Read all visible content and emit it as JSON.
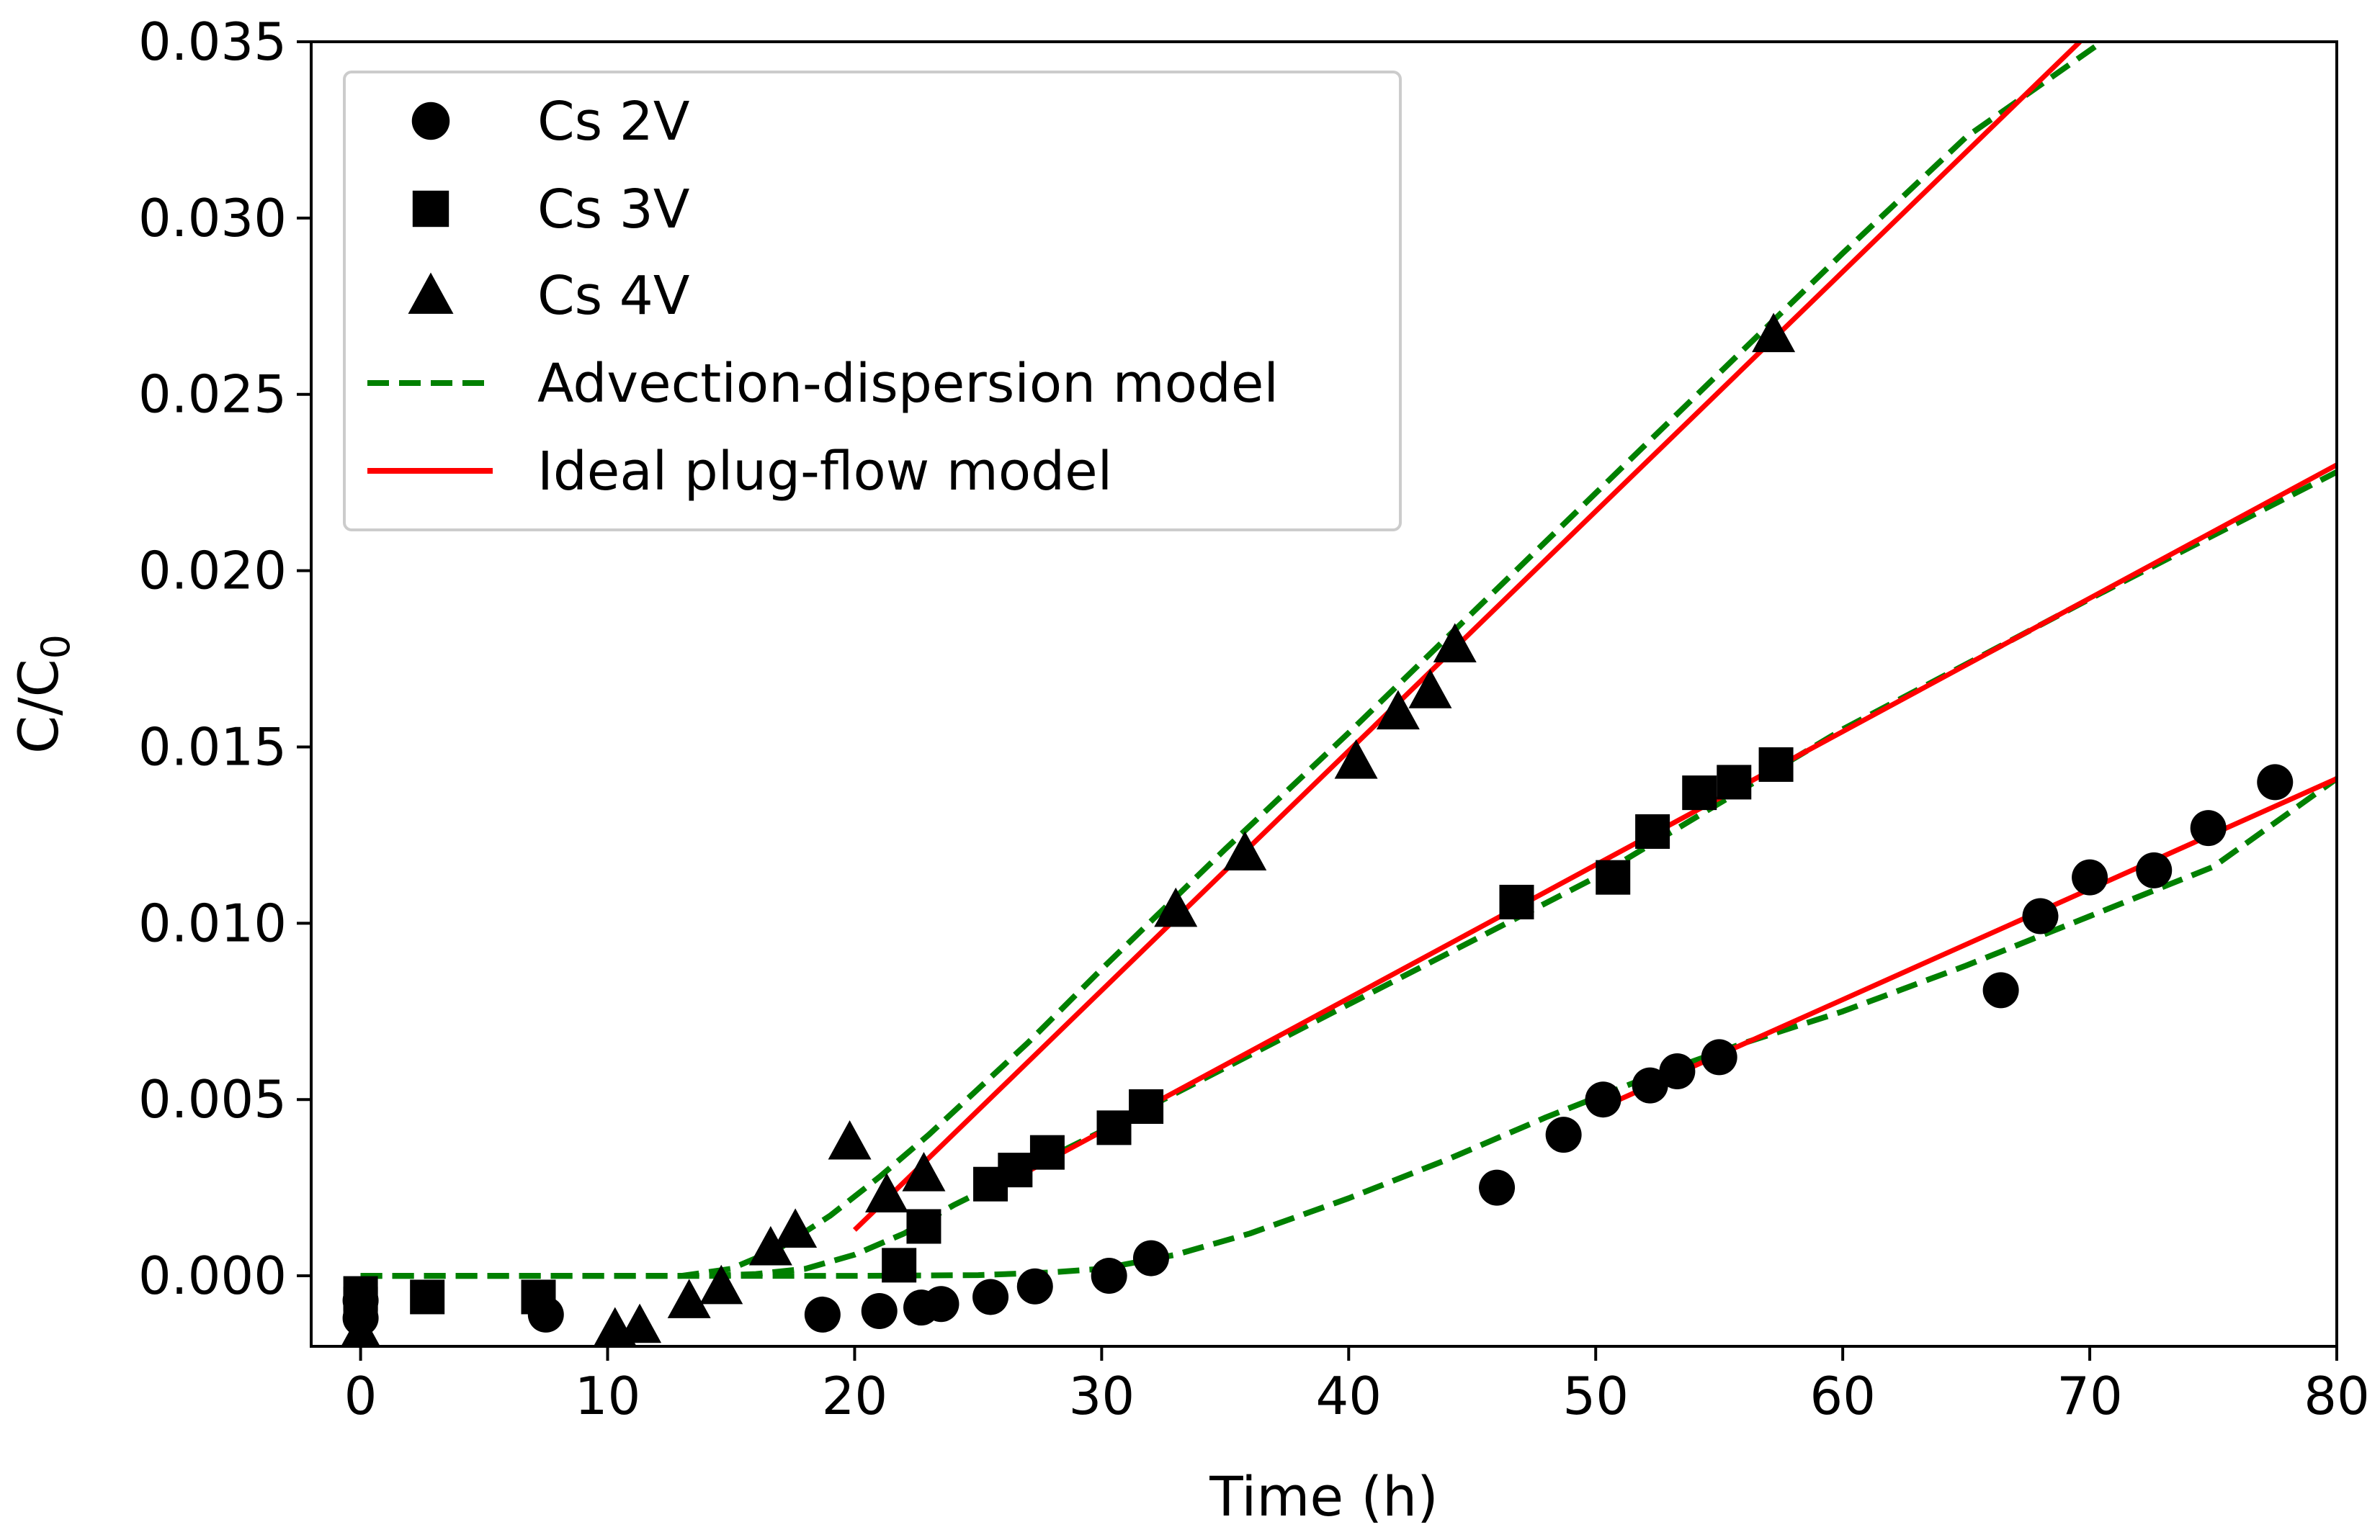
{
  "chart_data": {
    "type": "scatter",
    "title": "",
    "xlabel": "Time (h)",
    "ylabel": "C/C",
    "ylabel_subscript": "0",
    "xlim": [
      -2,
      80
    ],
    "ylim": [
      -0.002,
      0.035
    ],
    "x_ticks": [
      0,
      10,
      20,
      30,
      40,
      50,
      60,
      70,
      80
    ],
    "x_tick_labels": [
      "0",
      "10",
      "20",
      "30",
      "40",
      "50",
      "60",
      "70",
      "80"
    ],
    "y_ticks": [
      0.0,
      0.005,
      0.01,
      0.015,
      0.02,
      0.025,
      0.03,
      0.035
    ],
    "y_tick_labels": [
      "0.000",
      "0.005",
      "0.010",
      "0.015",
      "0.020",
      "0.025",
      "0.030",
      "0.035"
    ],
    "grid": false,
    "legend_position": "top-left",
    "legend": [
      {
        "label": "Cs 2V",
        "marker": "circle"
      },
      {
        "label": "Cs 3V",
        "marker": "square"
      },
      {
        "label": "Cs 4V",
        "marker": "triangle"
      },
      {
        "label": "Advection-dispersion model",
        "line": "dashed",
        "color": "#008000"
      },
      {
        "label": "Ideal plug-flow model",
        "line": "solid",
        "color": "#ff0000"
      }
    ],
    "series": [
      {
        "name": "Cs 2V",
        "marker": "circle",
        "color": "#000000",
        "points": [
          [
            0,
            -0.0007
          ],
          [
            0,
            -0.0012
          ],
          [
            7.5,
            -0.0011
          ],
          [
            18.7,
            -0.0011
          ],
          [
            21,
            -0.001
          ],
          [
            22.7,
            -0.0009
          ],
          [
            23.5,
            -0.0008
          ],
          [
            25.5,
            -0.0006
          ],
          [
            27.3,
            -0.0003
          ],
          [
            30.3,
            0.0
          ],
          [
            32,
            0.0005
          ],
          [
            46,
            0.0025
          ],
          [
            48.7,
            0.004
          ],
          [
            50.3,
            0.005
          ],
          [
            52.2,
            0.0054
          ],
          [
            53.3,
            0.0058
          ],
          [
            55,
            0.0062
          ],
          [
            66.4,
            0.0081
          ],
          [
            68,
            0.0102
          ],
          [
            70,
            0.0113
          ],
          [
            72.6,
            0.0115
          ],
          [
            74.8,
            0.0127
          ],
          [
            77.5,
            0.014
          ]
        ]
      },
      {
        "name": "Cs 3V",
        "marker": "square",
        "color": "#000000",
        "points": [
          [
            0,
            -0.0005
          ],
          [
            0,
            -0.0008
          ],
          [
            2.7,
            -0.0006
          ],
          [
            7.2,
            -0.0006
          ],
          [
            21.8,
            0.0003
          ],
          [
            22.8,
            0.0014
          ],
          [
            25.5,
            0.0026
          ],
          [
            26.5,
            0.003
          ],
          [
            27.8,
            0.0035
          ],
          [
            30.5,
            0.0042
          ],
          [
            31.8,
            0.0048
          ],
          [
            46.8,
            0.0106
          ],
          [
            50.7,
            0.0113
          ],
          [
            52.3,
            0.0126
          ],
          [
            54.2,
            0.0137
          ],
          [
            55.6,
            0.014
          ],
          [
            57.3,
            0.0145
          ]
        ]
      },
      {
        "name": "Cs 4V",
        "marker": "triangle",
        "color": "#000000",
        "points": [
          [
            0,
            -0.0016
          ],
          [
            10.3,
            -0.0015
          ],
          [
            11.3,
            -0.0014
          ],
          [
            13.3,
            -0.0007
          ],
          [
            14.6,
            -0.0003
          ],
          [
            16.6,
            0.0008
          ],
          [
            17.6,
            0.0013
          ],
          [
            19.8,
            0.0038
          ],
          [
            21.3,
            0.0023
          ],
          [
            22.8,
            0.0029
          ],
          [
            33,
            0.0104
          ],
          [
            35.8,
            0.012
          ],
          [
            40.3,
            0.0146
          ],
          [
            42,
            0.016
          ],
          [
            43.3,
            0.0166
          ],
          [
            44.3,
            0.0179
          ],
          [
            57.2,
            0.0267
          ]
        ]
      }
    ],
    "model_lines": [
      {
        "name": "Advection-dispersion model",
        "series": "Cs 2V",
        "style": "dashed",
        "color": "#008000",
        "x": [
          0,
          20,
          25,
          28,
          30,
          33,
          36,
          40,
          44,
          48,
          52,
          56,
          60,
          65,
          70,
          75,
          80
        ],
        "y": [
          0,
          0,
          2e-05,
          0.0001,
          0.0002,
          0.0006,
          0.0012,
          0.0022,
          0.0033,
          0.0045,
          0.0056,
          0.0066,
          0.0075,
          0.0088,
          0.0102,
          0.0116,
          0.0141
        ]
      },
      {
        "name": "Advection-dispersion model",
        "series": "Cs 3V",
        "style": "dashed",
        "color": "#008000",
        "x": [
          0,
          14,
          16,
          18,
          20,
          22,
          24,
          26,
          28,
          30,
          40,
          50,
          60,
          70,
          80
        ],
        "y": [
          0,
          0,
          5e-05,
          0.0002,
          0.0006,
          0.0012,
          0.002,
          0.0027,
          0.0034,
          0.0041,
          0.0077,
          0.0113,
          0.0155,
          0.0192,
          0.0228
        ]
      },
      {
        "name": "Advection-dispersion model",
        "series": "Cs 4V",
        "style": "dashed",
        "color": "#008000",
        "x": [
          0,
          13,
          15,
          17,
          19,
          21,
          23,
          25,
          27,
          30,
          35,
          40,
          45,
          50,
          55,
          60,
          65,
          70.5
        ],
        "y": [
          0,
          0,
          0.0002,
          0.0008,
          0.0017,
          0.0028,
          0.004,
          0.0053,
          0.0066,
          0.0087,
          0.0121,
          0.0154,
          0.0188,
          0.0222,
          0.0256,
          0.029,
          0.0323,
          0.035
        ]
      },
      {
        "name": "Ideal plug-flow model",
        "series": "Cs 2V",
        "style": "solid",
        "color": "#ff0000",
        "x": [
          50,
          80
        ],
        "y": [
          0.0047,
          0.0141
        ]
      },
      {
        "name": "Ideal plug-flow model",
        "series": "Cs 3V",
        "style": "solid",
        "color": "#ff0000",
        "x": [
          25,
          80
        ],
        "y": [
          0.0022,
          0.023
        ]
      },
      {
        "name": "Ideal plug-flow model",
        "series": "Cs 4V",
        "style": "solid",
        "color": "#ff0000",
        "x": [
          20,
          69.6
        ],
        "y": [
          0.0013,
          0.035
        ]
      }
    ]
  }
}
